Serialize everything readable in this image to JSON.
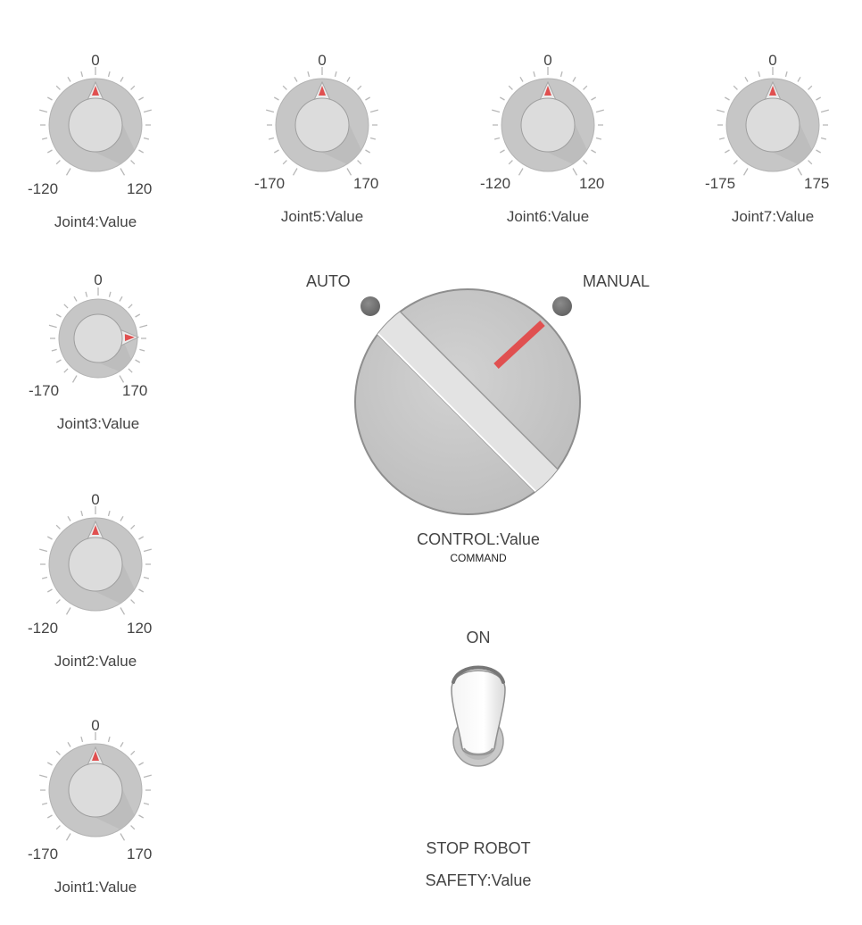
{
  "joints": [
    {
      "id": "joint4",
      "top_label": "0",
      "min_label": "-120",
      "max_label": "120",
      "caption": "Joint4:Value",
      "value": 0,
      "min": -120,
      "max": 120
    },
    {
      "id": "joint5",
      "top_label": "0",
      "min_label": "-170",
      "max_label": "170",
      "caption": "Joint5:Value",
      "value": 0,
      "min": -170,
      "max": 170
    },
    {
      "id": "joint6",
      "top_label": "0",
      "min_label": "-120",
      "max_label": "120",
      "caption": "Joint6:Value",
      "value": 0,
      "min": -120,
      "max": 120
    },
    {
      "id": "joint7",
      "top_label": "0",
      "min_label": "-175",
      "max_label": "175",
      "caption": "Joint7:Value",
      "value": 0,
      "min": -175,
      "max": 175
    },
    {
      "id": "joint3",
      "top_label": "0",
      "min_label": "-170",
      "max_label": "170",
      "caption": "Joint3:Value",
      "value": 100,
      "min": -170,
      "max": 170
    },
    {
      "id": "joint2",
      "top_label": "0",
      "min_label": "-120",
      "max_label": "120",
      "caption": "Joint2:Value",
      "value": 0,
      "min": -120,
      "max": 120
    },
    {
      "id": "joint1",
      "top_label": "0",
      "min_label": "-170",
      "max_label": "170",
      "caption": "Joint1:Value",
      "value": 0,
      "min": -170,
      "max": 170
    }
  ],
  "control": {
    "auto_label": "AUTO",
    "manual_label": "MANUAL",
    "caption": "CONTROL:Value",
    "sub_caption": "COMMAND",
    "selected": "MANUAL"
  },
  "safety": {
    "on_label": "ON",
    "stop_label": "STOP ROBOT",
    "caption": "SAFETY:Value",
    "state": "ON"
  },
  "colors": {
    "accent": "#e05050",
    "knob_ring": "#c6c6c6",
    "knob_cap": "#dcdcdc",
    "lamp": "#7a7a7a"
  }
}
